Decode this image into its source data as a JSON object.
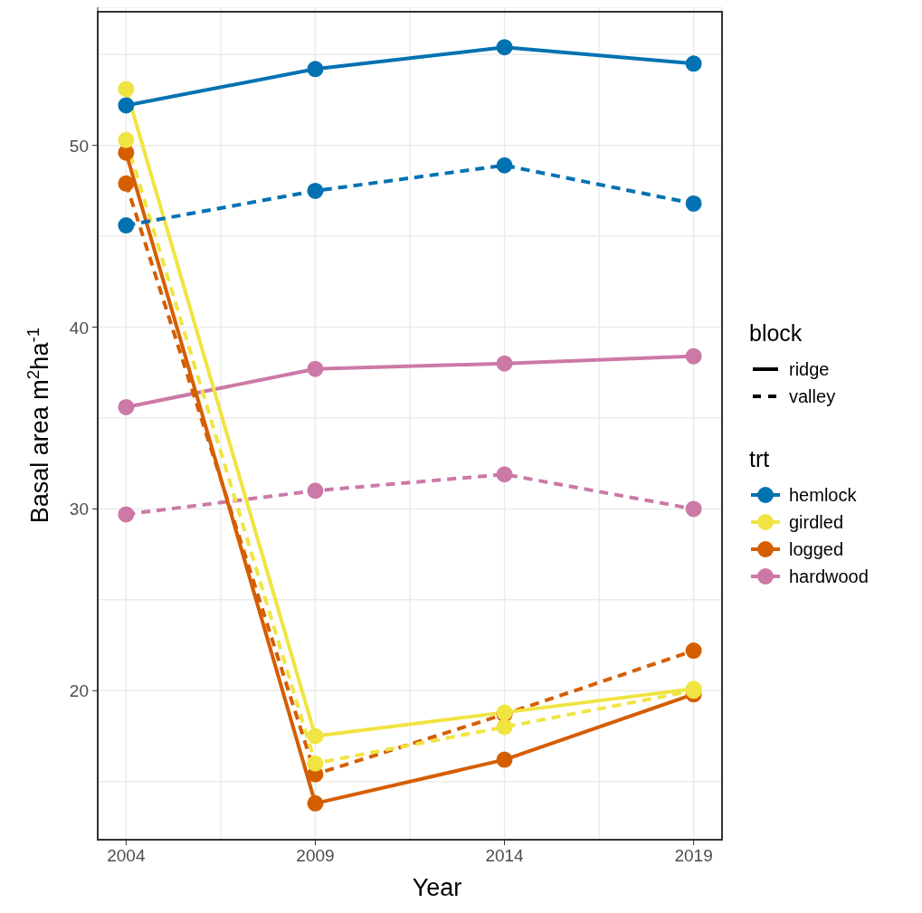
{
  "chart_data": {
    "type": "line",
    "xlabel": "Year",
    "ylabel": "Basal area  m$^{2}$ha$^{-1}$",
    "legend_title": "trt",
    "annotations": [
      "block",
      "ridge",
      "valley"
    ],
    "x": [
      2004,
      2009,
      2014,
      2019
    ],
    "xlim": [
      2003.25,
      2019.75
    ],
    "xticks": [
      2004,
      {
        "value": 2006.5,
        "label": null
      },
      2009,
      {
        "value": 2011.5,
        "label": null
      },
      2014,
      {
        "value": 2016.5,
        "label": null
      },
      2019
    ],
    "ylim": [
      11.8,
      57.6
    ],
    "yticks": [
      {
        "value": 15,
        "label": null
      },
      20,
      {
        "value": 25,
        "label": null
      },
      30,
      {
        "value": 35,
        "label": null
      },
      40,
      {
        "value": 45,
        "label": null
      },
      50,
      {
        "value": 55,
        "label": null
      }
    ],
    "grid": true,
    "legend": "right",
    "marker": "circle",
    "series": [
      {
        "name": "hemlock",
        "color": "#0072b2",
        "line_style": "solid",
        "values": [
          52.2,
          54.2,
          55.4,
          54.5
        ]
      },
      {
        "color": "#0072b2",
        "line_style": "dashed",
        "values": [
          45.6,
          47.5,
          48.9,
          46.8
        ]
      },
      {
        "name": "girdled",
        "color": "#f0e442",
        "line_style": "solid",
        "values": [
          53.1,
          17.5,
          18.8,
          20.1
        ]
      },
      {
        "color": "#f0e442",
        "line_style": "dashed",
        "values": [
          50.3,
          16.0,
          18.0,
          20.0
        ]
      },
      {
        "name": "logged",
        "color": "#d55e00",
        "line_style": "solid",
        "values": [
          49.6,
          13.8,
          16.2,
          19.8
        ]
      },
      {
        "color": "#d55e00",
        "line_style": "dashed",
        "values": [
          47.9,
          15.4,
          18.7,
          22.2
        ]
      },
      {
        "name": "hardwood",
        "color": "#cc79a7",
        "line_style": "solid",
        "values": [
          35.6,
          37.7,
          38.0,
          38.4
        ]
      },
      {
        "color": "#cc79a7",
        "line_style": "dashed",
        "values": [
          29.7,
          31.0,
          31.9,
          30.0
        ]
      }
    ]
  }
}
